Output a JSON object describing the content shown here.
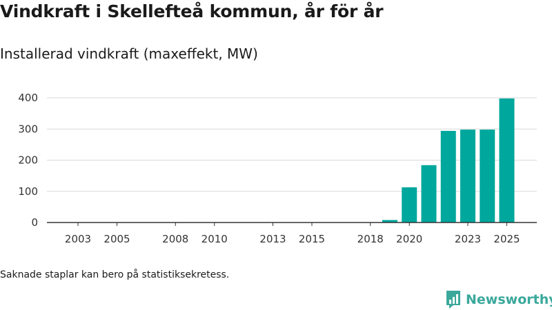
{
  "header": {
    "title": "Vindkraft i Skellefteå kommun, år för år",
    "subtitle": "Installerad vindkraft (maxeffekt, MW)"
  },
  "footer": {
    "note": "Saknade staplar kan bero på statistiksekretess.",
    "brand": "Newsworthy"
  },
  "colors": {
    "bar": "#00a79d",
    "brand": "#3aa89b",
    "grid": "#d9d9d9",
    "axis": "#333333"
  },
  "chart_data": {
    "type": "bar",
    "title": "Vindkraft i Skellefteå kommun, år för år",
    "subtitle": "Installerad vindkraft (maxeffekt, MW)",
    "xlabel": "",
    "ylabel": "",
    "categories": [
      2002,
      2003,
      2004,
      2005,
      2006,
      2007,
      2008,
      2009,
      2010,
      2011,
      2012,
      2013,
      2014,
      2015,
      2016,
      2017,
      2018,
      2019,
      2020,
      2021,
      2022,
      2023,
      2024,
      2025
    ],
    "values": [
      0,
      0,
      0,
      0,
      0,
      0,
      0,
      0,
      0,
      0,
      0,
      0,
      0,
      0,
      0,
      0,
      0,
      8,
      113,
      184,
      294,
      298,
      298,
      398
    ],
    "x_tick_labels": [
      "2003",
      "2005",
      "2008",
      "2010",
      "2013",
      "2015",
      "2018",
      "2020",
      "2023",
      "2025"
    ],
    "y_ticks": [
      0,
      100,
      200,
      300,
      400
    ],
    "ylim": [
      0,
      400
    ],
    "grid": true
  }
}
